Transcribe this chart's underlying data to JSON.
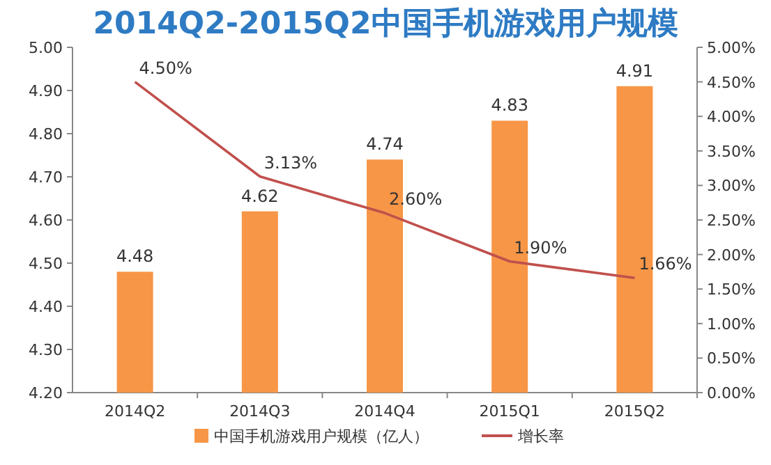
{
  "chart_data": {
    "type": "bar",
    "title": "2014Q2-2015Q2中国手机游戏用户规模",
    "categories": [
      "2014Q2",
      "2014Q3",
      "2014Q4",
      "2015Q1",
      "2015Q2"
    ],
    "series": [
      {
        "name": "中国手机游戏用户规模（亿人）",
        "color": "#f79646",
        "values": [
          4.48,
          4.62,
          4.74,
          4.83,
          4.91
        ],
        "value_labels": [
          "4.48",
          "4.62",
          "4.74",
          "4.83",
          "4.91"
        ]
      },
      {
        "name": "增长率",
        "type": "line",
        "axis": "y2",
        "color": "#c0504d",
        "marker": "none",
        "values": [
          4.5,
          3.13,
          2.6,
          1.9,
          1.66
        ],
        "value_labels": [
          "4.50%",
          "3.13%",
          "2.60%",
          "1.90%",
          "1.66%"
        ]
      }
    ],
    "ylim": [
      4.2,
      5.0
    ],
    "yticks": [
      {
        "value": 4.2,
        "label": "4.20"
      },
      {
        "value": 4.3,
        "label": "4.30"
      },
      {
        "value": 4.4,
        "label": "4.40"
      },
      {
        "value": 4.5,
        "label": "4.50"
      },
      {
        "value": 4.6,
        "label": "4.60"
      },
      {
        "value": 4.7,
        "label": "4.70"
      },
      {
        "value": 4.8,
        "label": "4.80"
      },
      {
        "value": 4.9,
        "label": "4.90"
      },
      {
        "value": 5.0,
        "label": "5.00"
      }
    ],
    "y2lim": [
      0,
      5
    ],
    "y2ticks": [
      {
        "value": 0,
        "label": "0.00%"
      },
      {
        "value": 0.5,
        "label": "0.50%"
      },
      {
        "value": 1,
        "label": "1.00%"
      },
      {
        "value": 1.5,
        "label": "1.50%"
      },
      {
        "value": 2,
        "label": "2.00%"
      },
      {
        "value": 2.5,
        "label": "2.50%"
      },
      {
        "value": 3,
        "label": "3.00%"
      },
      {
        "value": 3.5,
        "label": "3.50%"
      },
      {
        "value": 4,
        "label": "4.00%"
      },
      {
        "value": 4.5,
        "label": "4.50%"
      },
      {
        "value": 5,
        "label": "5.00%"
      }
    ],
    "legend": "bottom"
  }
}
